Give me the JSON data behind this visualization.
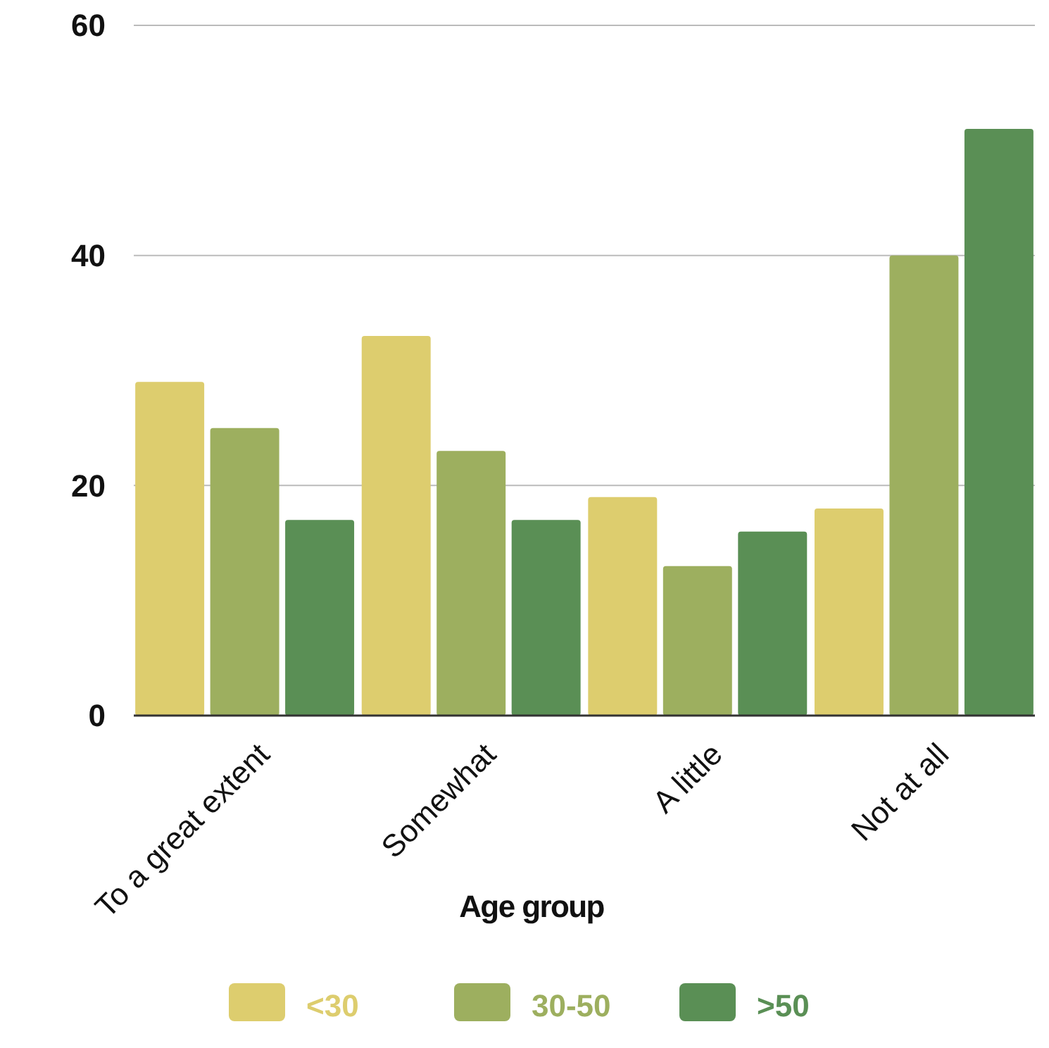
{
  "chart_data": {
    "type": "bar",
    "legend_title": "Age group",
    "categories": [
      "To a great extent",
      "Somewhat",
      "A little",
      "Not at all"
    ],
    "series": [
      {
        "name": "<30",
        "color": "#ddcd6e",
        "values": [
          29,
          33,
          19,
          18
        ]
      },
      {
        "name": "30-50",
        "color": "#9daf5f",
        "values": [
          25,
          23,
          13,
          40
        ]
      },
      {
        "name": ">50",
        "color": "#5a8f55",
        "values": [
          17,
          17,
          16,
          51
        ]
      }
    ],
    "ylim": [
      0,
      60
    ],
    "yticks": [
      0,
      20,
      40,
      60
    ],
    "grid": "y",
    "legend": "bottom"
  }
}
